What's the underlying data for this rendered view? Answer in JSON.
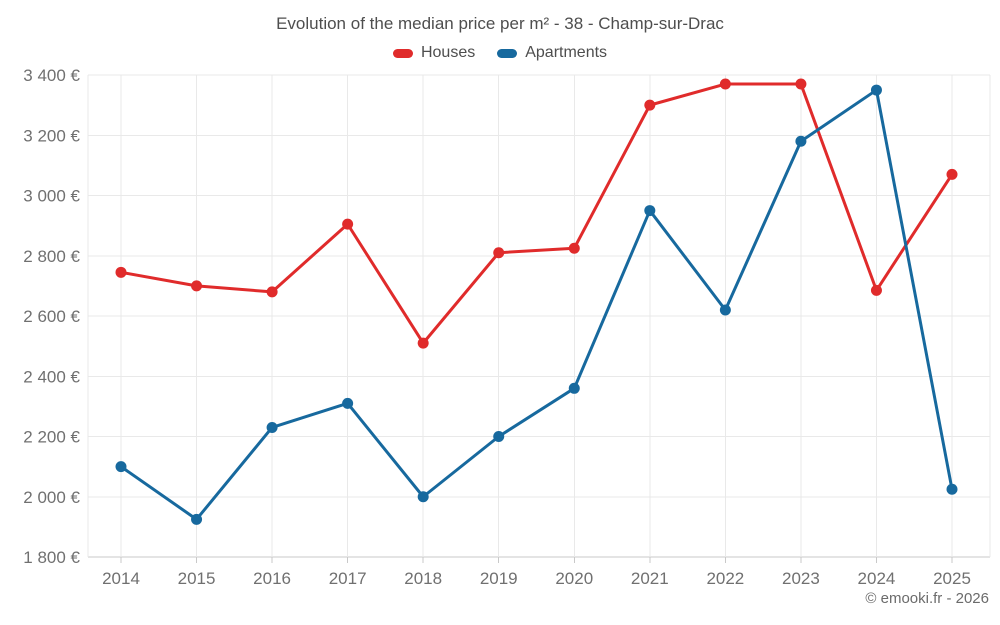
{
  "chart_data": {
    "type": "line",
    "title": "Evolution of the median price per m² - 38 - Champ-sur-Drac",
    "x": [
      "2014",
      "2015",
      "2016",
      "2017",
      "2018",
      "2019",
      "2020",
      "2021",
      "2022",
      "2023",
      "2024",
      "2025"
    ],
    "series": [
      {
        "name": "Houses",
        "color": "#e02b2b",
        "values": [
          2745,
          2700,
          2680,
          2905,
          2510,
          2810,
          2825,
          3300,
          3370,
          3370,
          2685,
          3070
        ]
      },
      {
        "name": "Apartments",
        "color": "#17699e",
        "values": [
          2100,
          1925,
          2230,
          2310,
          2000,
          2200,
          2360,
          2950,
          2620,
          3180,
          3350,
          2025
        ]
      }
    ],
    "xlabel": "",
    "ylabel": "",
    "ylim": [
      1800,
      3400
    ],
    "ytick_step": 200,
    "ytick_labels": [
      "1 800 €",
      "2 000 €",
      "2 200 €",
      "2 400 €",
      "2 600 €",
      "2 800 €",
      "3 000 €",
      "3 200 €",
      "3 400 €"
    ],
    "grid": true,
    "legend_position": "top",
    "colors": {
      "grid": "#e9e9e9",
      "axis": "#c9c9c9",
      "tick_text": "#707070"
    }
  },
  "footer": {
    "credit": "© emooki.fr - 2026"
  }
}
